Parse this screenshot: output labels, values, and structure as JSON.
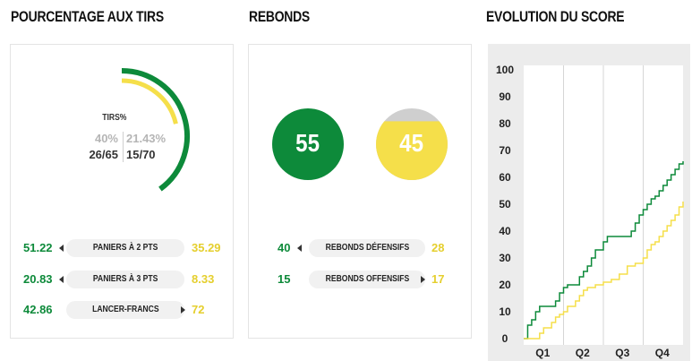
{
  "sections": {
    "shots_title": "POURCENTAGE AUX TIRS",
    "rebounds_title": "REBONDS",
    "score_title": "EVOLUTION DU SCORE"
  },
  "colors": {
    "team_home": "#0d8a3a",
    "team_away": "#f5df4a",
    "away_text": "#e5cf2e",
    "grey": "#cfcfcf"
  },
  "shots": {
    "label": "TIRS%",
    "home_pct": "40%",
    "away_pct": "21.43%",
    "home_made": "26/65",
    "away_made": "15/70",
    "home_fraction": 0.4,
    "away_fraction": 0.2143,
    "rows": [
      {
        "home": "51.22",
        "label": "PANIERS À 2 PTS",
        "away": "35.29",
        "leader": "home"
      },
      {
        "home": "20.83",
        "label": "PANIERS À 3 PTS",
        "away": "8.33",
        "leader": "home"
      },
      {
        "home": "42.86",
        "label": "LANCER-FRANCS",
        "away": "72",
        "leader": "away"
      }
    ]
  },
  "rebounds": {
    "home_total": "55",
    "away_total": "45",
    "away_fill_fraction": 0.82,
    "rows": [
      {
        "home": "40",
        "label": "REBONDS DÉFENSIFS",
        "away": "28",
        "leader": "home"
      },
      {
        "home": "15",
        "label": "REBONDS OFFENSIFS",
        "away": "17",
        "leader": "away"
      }
    ]
  },
  "chart_data": {
    "type": "line",
    "title": "EVOLUTION DU SCORE",
    "yticks": [
      0,
      10,
      20,
      30,
      40,
      50,
      60,
      70,
      80,
      90,
      100
    ],
    "ylim": [
      0,
      100
    ],
    "xlim": [
      0,
      40
    ],
    "categories": [
      "Q1",
      "Q2",
      "Q3",
      "Q4"
    ],
    "grid": true,
    "series": [
      {
        "color": "#0d8a3a",
        "x": [
          0,
          1,
          2,
          3,
          4,
          6,
          8,
          9,
          10,
          11,
          13,
          14,
          15,
          16,
          17,
          18,
          20,
          21,
          22,
          24,
          27,
          28,
          29,
          30,
          31,
          32,
          33,
          34,
          35,
          36,
          37,
          38,
          39,
          40
        ],
        "y": [
          0,
          5,
          7,
          10,
          12,
          12,
          14,
          17,
          19,
          20,
          20,
          23,
          25,
          27,
          30,
          33,
          36,
          38,
          38,
          38,
          40,
          43,
          46,
          48,
          50,
          52,
          53,
          55,
          57,
          59,
          61,
          63,
          65,
          66
        ]
      },
      {
        "color": "#f5df4a",
        "x": [
          0,
          1,
          3,
          4,
          5,
          7,
          8,
          9,
          10,
          11,
          13,
          14,
          15,
          16,
          18,
          20,
          22,
          24,
          26,
          28,
          30,
          31,
          32,
          33,
          34,
          35,
          36,
          37,
          38,
          39,
          40
        ],
        "y": [
          0,
          0,
          0,
          2,
          4,
          6,
          8,
          9,
          10,
          12,
          14,
          16,
          18,
          19,
          20,
          21,
          22,
          24,
          27,
          28,
          30,
          33,
          35,
          36,
          38,
          40,
          42,
          44,
          46,
          49,
          51
        ]
      }
    ]
  }
}
